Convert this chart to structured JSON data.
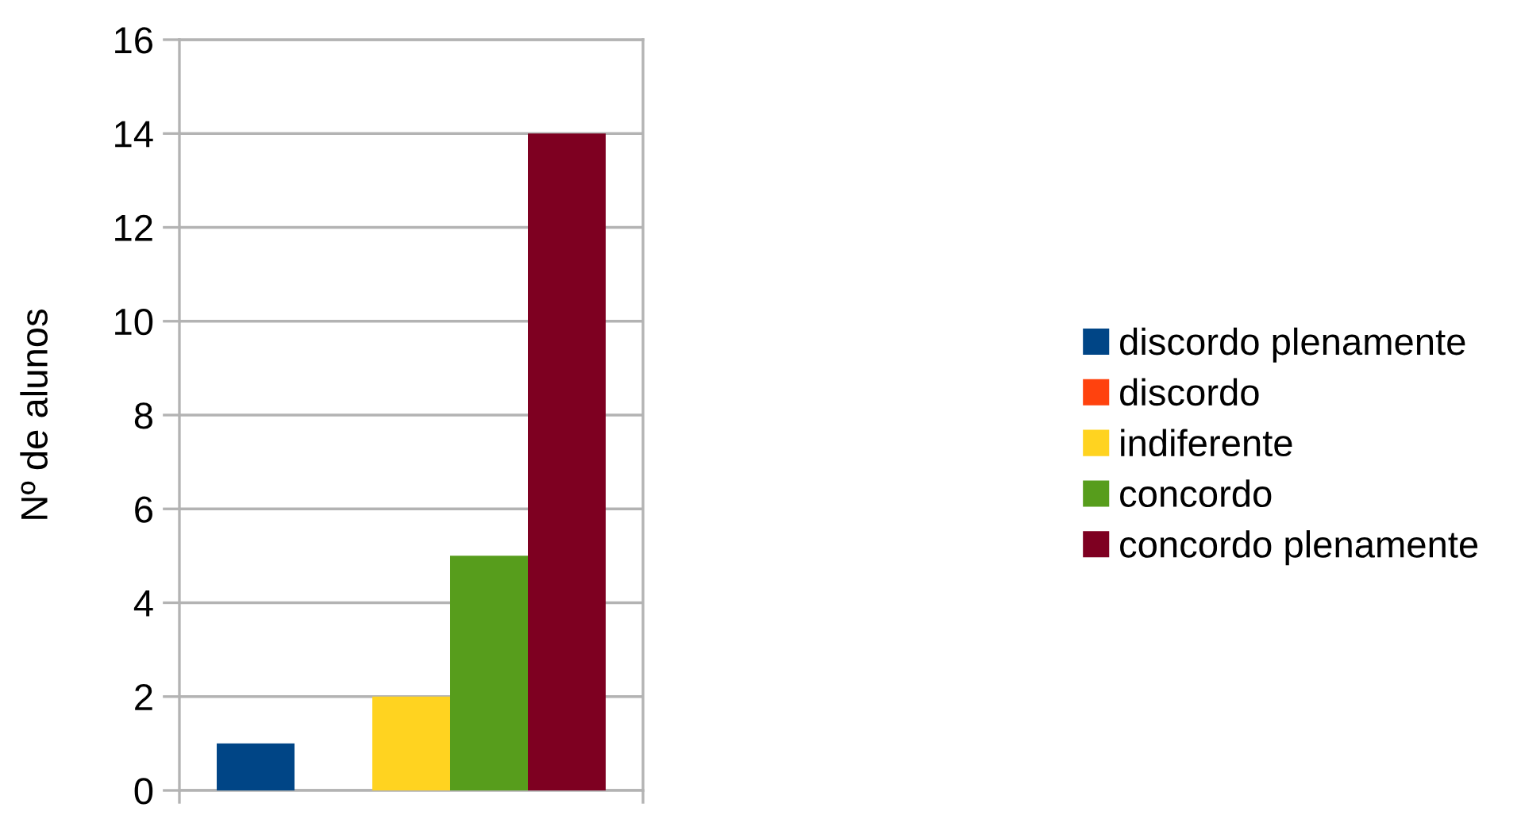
{
  "chart_data": {
    "type": "bar",
    "ylabel": "Nº de alunos",
    "categories": [
      null
    ],
    "series": [
      {
        "name": "discordo plenamente",
        "color": "#004586",
        "values": [
          1
        ]
      },
      {
        "name": "discordo",
        "color": "#ff420e",
        "values": [
          0
        ]
      },
      {
        "name": "indiferente",
        "color": "#ffd320",
        "values": [
          2
        ]
      },
      {
        "name": "concordo",
        "color": "#579d1c",
        "values": [
          5
        ]
      },
      {
        "name": "concordo plenamente",
        "color": "#7e0021",
        "values": [
          14
        ]
      }
    ],
    "ylim": [
      0,
      16
    ],
    "yticks": [
      0,
      2,
      4,
      6,
      8,
      10,
      12,
      14,
      16
    ],
    "grid": "y",
    "legend": "right"
  }
}
